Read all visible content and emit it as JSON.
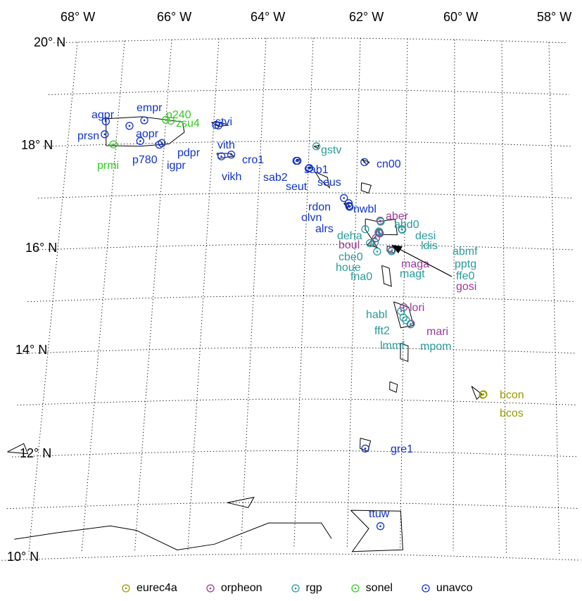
{
  "map": {
    "lon_ticks": [
      "68",
      "66",
      "64",
      "62",
      "60",
      "58"
    ],
    "lon_hemisphere": "W",
    "lat_ticks": [
      "20",
      "18",
      "16",
      "14",
      "12",
      "10"
    ],
    "lat_hemisphere": "N",
    "degree_symbol": "°"
  },
  "colors": {
    "eurec4a": "#9a9a00",
    "orpheon": "#9a3a9a",
    "rgp": "#2a9a9a",
    "sonel": "#33cc22",
    "unavco": "#1133cc"
  },
  "legend": [
    {
      "key": "eurec4a",
      "label": "eurec4a"
    },
    {
      "key": "orpheon",
      "label": "orpheon"
    },
    {
      "key": "rgp",
      "label": "rgp"
    },
    {
      "key": "sonel",
      "label": "sonel"
    },
    {
      "key": "unavco",
      "label": "unavco"
    }
  ],
  "stations": [
    {
      "name": "agpr",
      "network": "unavco",
      "lon": -67.25,
      "lat": 18.45
    },
    {
      "name": "prsn",
      "network": "unavco",
      "lon": -67.25,
      "lat": 18.2
    },
    {
      "name": "aopr",
      "network": "unavco",
      "lon": -66.75,
      "lat": 18.35
    },
    {
      "name": "empr",
      "network": "unavco",
      "lon": -66.45,
      "lat": 18.45
    },
    {
      "name": "n240",
      "network": "sonel",
      "lon": -66.0,
      "lat": 18.45
    },
    {
      "name": "zsu4",
      "network": "sonel",
      "lon": -65.9,
      "lat": 18.43
    },
    {
      "name": "prmi",
      "network": "sonel",
      "lon": -67.05,
      "lat": 18.0
    },
    {
      "name": "p780",
      "network": "unavco",
      "lon": -66.5,
      "lat": 18.05
    },
    {
      "name": "pdpr",
      "network": "unavco",
      "lon": -66.05,
      "lat": 18.0
    },
    {
      "name": "igpr",
      "network": "unavco",
      "lon": -66.1,
      "lat": 17.97
    },
    {
      "name": "stvi",
      "network": "unavco",
      "lon": -64.95,
      "lat": 18.33
    },
    {
      "name": "vith",
      "network": "unavco",
      "lon": -64.9,
      "lat": 18.32
    },
    {
      "name": "cro1",
      "network": "unavco",
      "lon": -64.6,
      "lat": 17.75
    },
    {
      "name": "vikh",
      "network": "unavco",
      "lon": -64.8,
      "lat": 17.72
    },
    {
      "name": "gstv",
      "network": "rgp",
      "lon": -62.85,
      "lat": 17.9
    },
    {
      "name": "sab1",
      "network": "unavco",
      "lon": -63.23,
      "lat": 17.62
    },
    {
      "name": "sab2",
      "network": "unavco",
      "lon": -63.25,
      "lat": 17.62
    },
    {
      "name": "seus",
      "network": "unavco",
      "lon": -62.98,
      "lat": 17.48
    },
    {
      "name": "seut",
      "network": "unavco",
      "lon": -62.99,
      "lat": 17.47
    },
    {
      "name": "cn00",
      "network": "unavco",
      "lon": -61.85,
      "lat": 17.6
    },
    {
      "name": "rdon",
      "network": "unavco",
      "lon": -62.25,
      "lat": 16.9
    },
    {
      "name": "nwbl",
      "network": "unavco",
      "lon": -62.15,
      "lat": 16.8
    },
    {
      "name": "olvn",
      "network": "unavco",
      "lon": -62.14,
      "lat": 16.75
    },
    {
      "name": "alrs",
      "network": "unavco",
      "lon": -62.13,
      "lat": 16.73
    },
    {
      "name": "aber",
      "network": "orpheon",
      "lon": -61.5,
      "lat": 16.47
    },
    {
      "name": "abd0",
      "network": "rgp",
      "lon": -61.49,
      "lat": 16.45
    },
    {
      "name": "desi",
      "network": "rgp",
      "lon": -61.05,
      "lat": 16.3
    },
    {
      "name": "ldis",
      "network": "rgp",
      "lon": -61.06,
      "lat": 16.31
    },
    {
      "name": "deha",
      "network": "rgp",
      "lon": -61.8,
      "lat": 16.3
    },
    {
      "name": "boul",
      "network": "orpheon",
      "lon": -61.58,
      "lat": 16.13
    },
    {
      "name": "abmf",
      "network": "rgp",
      "lon": -61.52,
      "lat": 16.26
    },
    {
      "name": "pptg",
      "network": "rgp",
      "lon": -61.53,
      "lat": 16.24
    },
    {
      "name": "ffe0",
      "network": "rgp",
      "lon": -61.5,
      "lat": 16.22
    },
    {
      "name": "gosi",
      "network": "orpheon",
      "lon": -61.51,
      "lat": 16.23
    },
    {
      "name": "cbe0",
      "network": "rgp",
      "lon": -61.6,
      "lat": 16.05
    },
    {
      "name": "houe",
      "network": "rgp",
      "lon": -61.7,
      "lat": 16.03
    },
    {
      "name": "fna0",
      "network": "rgp",
      "lon": -61.55,
      "lat": 15.87
    },
    {
      "name": "maga",
      "network": "orpheon",
      "lon": -61.25,
      "lat": 15.9
    },
    {
      "name": "magt",
      "network": "rgp",
      "lon": -61.26,
      "lat": 15.88
    },
    {
      "name": "lori",
      "network": "orpheon",
      "lon": -61.0,
      "lat": 14.8
    },
    {
      "name": "habl",
      "network": "rgp",
      "lon": -61.05,
      "lat": 14.72
    },
    {
      "name": "fft2",
      "network": "rgp",
      "lon": -61.0,
      "lat": 14.6
    },
    {
      "name": "mari",
      "network": "orpheon",
      "lon": -60.85,
      "lat": 14.48
    },
    {
      "name": "lmmf",
      "network": "rgp",
      "lon": -60.95,
      "lat": 14.55
    },
    {
      "name": "mpom",
      "network": "rgp",
      "lon": -60.86,
      "lat": 14.47
    },
    {
      "name": "bcon",
      "network": "eurec4a",
      "lon": -59.42,
      "lat": 13.15
    },
    {
      "name": "bcos",
      "network": "eurec4a",
      "lon": -59.43,
      "lat": 13.14
    },
    {
      "name": "gre1",
      "network": "unavco",
      "lon": -61.7,
      "lat": 12.05
    },
    {
      "name": "ttuw",
      "network": "unavco",
      "lon": -61.38,
      "lat": 10.55
    }
  ]
}
